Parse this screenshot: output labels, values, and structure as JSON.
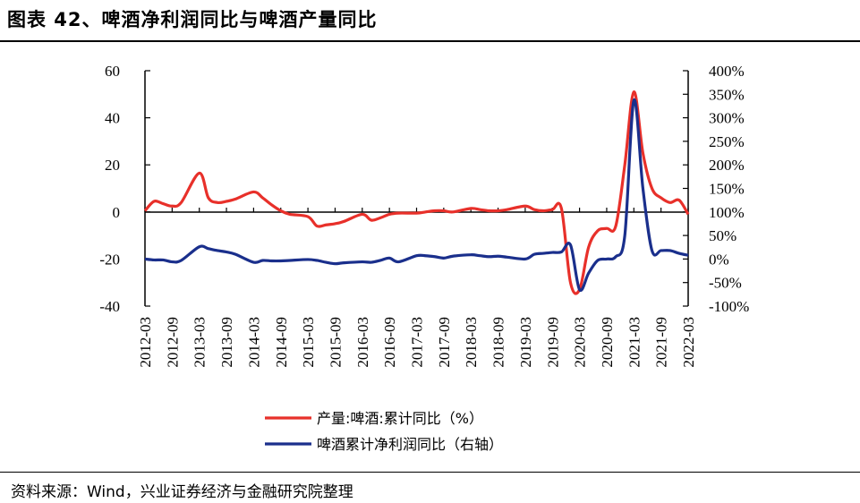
{
  "figure": {
    "title": "图表 42、啤酒净利润同比与啤酒产量同比",
    "source": "资料来源：Wind，兴业证券经济与金融研究院整理"
  },
  "colors": {
    "red": "#E8302A",
    "blue": "#1A2F8C"
  },
  "chart_data": {
    "type": "line",
    "title": "",
    "x_tick_labels": [
      "2012-03",
      "2012-09",
      "2013-03",
      "2013-09",
      "2014-03",
      "2014-09",
      "2015-03",
      "2015-09",
      "2016-03",
      "2016-09",
      "2017-03",
      "2017-09",
      "2018-03",
      "2018-09",
      "2019-03",
      "2019-09",
      "2020-03",
      "2020-09",
      "2021-03",
      "2021-09",
      "2022-03"
    ],
    "y_left": {
      "ticks": [
        -40,
        -20,
        0,
        20,
        40,
        60
      ],
      "tick_labels": [
        "-40",
        "-20",
        "0",
        "20",
        "40",
        "60"
      ],
      "range": [
        -40,
        60
      ]
    },
    "y_right": {
      "ticks": [
        -100,
        -50,
        0,
        50,
        100,
        150,
        200,
        250,
        300,
        350,
        400
      ],
      "tick_labels": [
        "-100%",
        "-50%",
        "0%",
        "50%",
        "100%",
        "150%",
        "200%",
        "250%",
        "300%",
        "350%",
        "400%"
      ],
      "range": [
        -100,
        400
      ]
    },
    "legend_position": "bottom-center",
    "grid": false,
    "series": [
      {
        "name": "产量:啤酒:累计同比（%）",
        "axis": "left",
        "color": "#E8302A",
        "points": [
          [
            "2012-03",
            0.5
          ],
          [
            "2012-05",
            4.5
          ],
          [
            "2012-07",
            3.5
          ],
          [
            "2012-09",
            2.5
          ],
          [
            "2012-11",
            4
          ],
          [
            "2013-03",
            16.5
          ],
          [
            "2013-05",
            6
          ],
          [
            "2013-07",
            4
          ],
          [
            "2013-09",
            4.5
          ],
          [
            "2013-11",
            5.5
          ],
          [
            "2014-03",
            8.5
          ],
          [
            "2014-05",
            6
          ],
          [
            "2014-07",
            3
          ],
          [
            "2014-09",
            0.5
          ],
          [
            "2014-11",
            -1
          ],
          [
            "2015-03",
            -2
          ],
          [
            "2015-05",
            -6
          ],
          [
            "2015-07",
            -5.5
          ],
          [
            "2015-09",
            -5
          ],
          [
            "2015-11",
            -4
          ],
          [
            "2016-03",
            -1
          ],
          [
            "2016-05",
            -3.5
          ],
          [
            "2016-07",
            -2.5
          ],
          [
            "2016-09",
            -1
          ],
          [
            "2016-11",
            -0.5
          ],
          [
            "2017-03",
            -0.5
          ],
          [
            "2017-05",
            0
          ],
          [
            "2017-07",
            0.5
          ],
          [
            "2017-09",
            0.5
          ],
          [
            "2017-11",
            0
          ],
          [
            "2018-03",
            1.5
          ],
          [
            "2018-05",
            1
          ],
          [
            "2018-07",
            0.5
          ],
          [
            "2018-09",
            0.5
          ],
          [
            "2018-11",
            1
          ],
          [
            "2019-03",
            2.5
          ],
          [
            "2019-05",
            1
          ],
          [
            "2019-07",
            0.5
          ],
          [
            "2019-09",
            1
          ],
          [
            "2019-11",
            1.5
          ],
          [
            "2020-01",
            -30
          ],
          [
            "2020-03",
            -33
          ],
          [
            "2020-05",
            -15
          ],
          [
            "2020-07",
            -8
          ],
          [
            "2020-09",
            -7
          ],
          [
            "2020-11",
            -6
          ],
          [
            "2021-01",
            20
          ],
          [
            "2021-03",
            51
          ],
          [
            "2021-05",
            25
          ],
          [
            "2021-07",
            10
          ],
          [
            "2021-09",
            6
          ],
          [
            "2021-11",
            4
          ],
          [
            "2022-01",
            5
          ],
          [
            "2022-03",
            -1
          ]
        ]
      },
      {
        "name": "啤酒累计净利润同比（右轴）",
        "axis": "right",
        "color": "#1A2F8C",
        "points": [
          [
            "2012-03",
            0
          ],
          [
            "2012-05",
            -2
          ],
          [
            "2012-07",
            -2
          ],
          [
            "2012-09",
            -6
          ],
          [
            "2012-11",
            -3
          ],
          [
            "2013-03",
            26
          ],
          [
            "2013-05",
            22
          ],
          [
            "2013-07",
            18
          ],
          [
            "2013-09",
            15
          ],
          [
            "2013-11",
            10
          ],
          [
            "2014-03",
            -7
          ],
          [
            "2014-05",
            -3
          ],
          [
            "2014-07",
            -4
          ],
          [
            "2014-09",
            -4
          ],
          [
            "2014-11",
            -3
          ],
          [
            "2015-03",
            -1
          ],
          [
            "2015-05",
            -3
          ],
          [
            "2015-07",
            -7
          ],
          [
            "2015-09",
            -10
          ],
          [
            "2015-11",
            -8
          ],
          [
            "2016-03",
            -6
          ],
          [
            "2016-05",
            -7
          ],
          [
            "2016-07",
            -3
          ],
          [
            "2016-09",
            2
          ],
          [
            "2016-11",
            -6
          ],
          [
            "2017-03",
            7
          ],
          [
            "2017-05",
            7
          ],
          [
            "2017-07",
            5
          ],
          [
            "2017-09",
            2
          ],
          [
            "2017-11",
            6
          ],
          [
            "2018-03",
            9
          ],
          [
            "2018-05",
            7
          ],
          [
            "2018-07",
            5
          ],
          [
            "2018-09",
            6
          ],
          [
            "2018-11",
            4
          ],
          [
            "2019-03",
            0
          ],
          [
            "2019-05",
            10
          ],
          [
            "2019-07",
            12
          ],
          [
            "2019-09",
            14
          ],
          [
            "2019-11",
            15
          ],
          [
            "2020-01",
            30
          ],
          [
            "2020-03",
            -65
          ],
          [
            "2020-05",
            -30
          ],
          [
            "2020-07",
            -3
          ],
          [
            "2020-09",
            0
          ],
          [
            "2020-11",
            5
          ],
          [
            "2021-01",
            50
          ],
          [
            "2021-03",
            337
          ],
          [
            "2021-05",
            150
          ],
          [
            "2021-07",
            18
          ],
          [
            "2021-09",
            18
          ],
          [
            "2021-11",
            18
          ],
          [
            "2022-01",
            12
          ],
          [
            "2022-03",
            8
          ]
        ]
      }
    ]
  }
}
